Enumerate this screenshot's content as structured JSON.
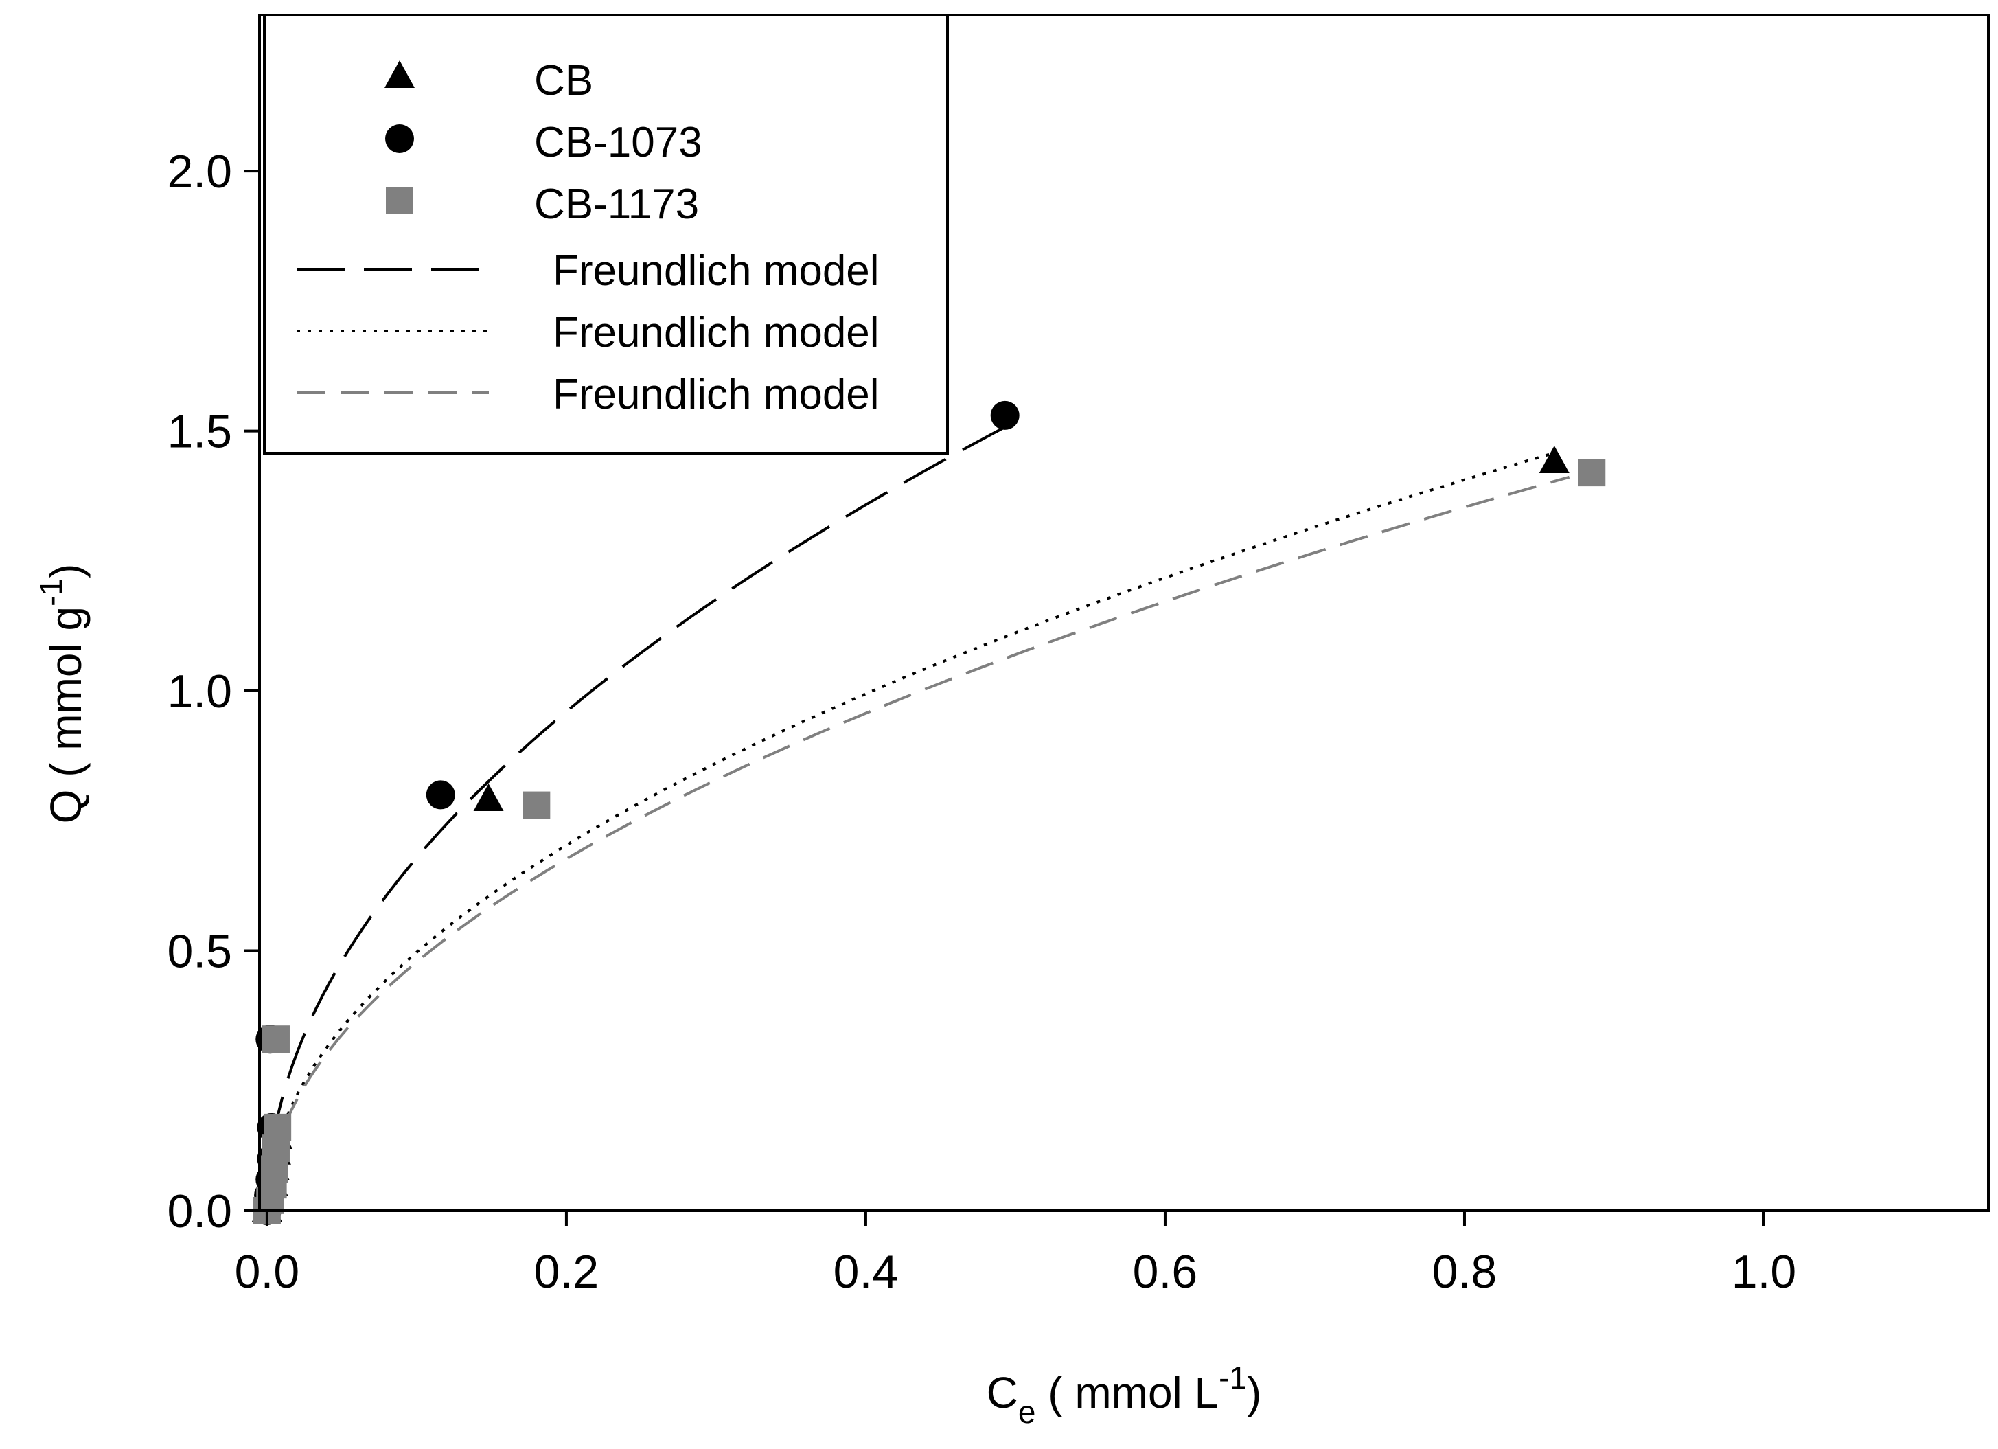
{
  "chart_data": {
    "type": "scatter",
    "title": "",
    "xlabel": {
      "main": "C",
      "sub": "e",
      "unit_open": " ( mmol L",
      "sup": "-1",
      "unit_close": ")"
    },
    "ylabel": {
      "main": "Q ( mmol g",
      "sup": "-1",
      "unit_close": ")"
    },
    "xlim": [
      -0.005,
      1.15
    ],
    "ylim": [
      0,
      2.3
    ],
    "x_ticks": [
      0.0,
      0.2,
      0.4,
      0.6,
      0.8,
      1.0
    ],
    "x_tick_labels": [
      "0.0",
      "0.2",
      "0.4",
      "0.6",
      "0.8",
      "1.0"
    ],
    "y_ticks": [
      0.0,
      0.5,
      1.0,
      1.5,
      2.0
    ],
    "y_tick_labels": [
      "0.0",
      "0.5",
      "1.0",
      "1.5",
      "2.0"
    ],
    "grid": false,
    "legend_position": "top-left",
    "series": [
      {
        "name": "CB",
        "marker": "triangle",
        "color": "#000000",
        "x": [
          0.0,
          0.002,
          0.004,
          0.005,
          0.006,
          0.007,
          0.148,
          0.86
        ],
        "y": [
          0.0,
          0.02,
          0.05,
          0.08,
          0.11,
          0.14,
          0.79,
          1.44
        ]
      },
      {
        "name": "CB-1073",
        "marker": "circle",
        "color": "#000000",
        "x": [
          0.0,
          0.001,
          0.002,
          0.003,
          0.003,
          0.002,
          0.116,
          0.493
        ],
        "y": [
          0.0,
          0.03,
          0.06,
          0.1,
          0.16,
          0.33,
          0.8,
          1.53
        ]
      },
      {
        "name": "CB-1173",
        "marker": "square",
        "color": "#808080",
        "x": [
          0.0,
          0.002,
          0.004,
          0.005,
          0.006,
          0.007,
          0.006,
          0.18,
          0.885
        ],
        "y": [
          0.0,
          0.02,
          0.05,
          0.08,
          0.12,
          0.16,
          0.33,
          0.78,
          1.42
        ]
      }
    ],
    "fits": [
      {
        "name": "Freundlich model",
        "style": "long-dash",
        "color": "#000000",
        "K": 2.147,
        "n": 0.5,
        "x_max": 0.493
      },
      {
        "name": "Freundlich model",
        "style": "dotted",
        "color": "#000000",
        "K": 1.572,
        "n": 0.5,
        "x_max": 0.86
      },
      {
        "name": "Freundlich model",
        "style": "short-dash",
        "color": "#808080",
        "K": 1.513,
        "n": 0.5,
        "x_max": 0.87
      }
    ],
    "legend": [
      {
        "label": "CB",
        "kind": "marker",
        "ref": 0
      },
      {
        "label": "CB-1073",
        "kind": "marker",
        "ref": 1
      },
      {
        "label": "CB-1173",
        "kind": "marker",
        "ref": 2
      },
      {
        "label": "Freundlich model",
        "kind": "line",
        "ref": 0
      },
      {
        "label": "Freundlich model",
        "kind": "line",
        "ref": 1
      },
      {
        "label": "Freundlich model",
        "kind": "line",
        "ref": 2
      }
    ]
  }
}
